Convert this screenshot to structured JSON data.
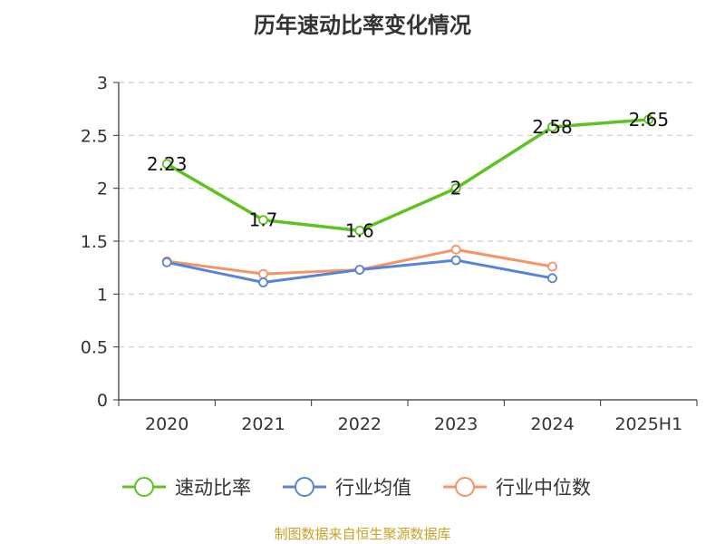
{
  "title": "历年速动比率变化情况",
  "source_note": "制图数据来自恒生聚源数据库",
  "chart_data": {
    "type": "line",
    "categories": [
      "2020",
      "2021",
      "2022",
      "2023",
      "2024",
      "2025H1"
    ],
    "ylim": [
      0,
      3
    ],
    "yticks": [
      0,
      0.5,
      1,
      1.5,
      2,
      2.5,
      3
    ],
    "ytick_labels": [
      "0",
      "0.5",
      "1",
      "1.5",
      "2",
      "2.5",
      "3"
    ],
    "grid": true,
    "legend_position": "bottom",
    "series": [
      {
        "name": "速动比率",
        "color": "#5dc41f",
        "values": [
          2.23,
          1.7,
          1.6,
          2,
          2.58,
          2.65
        ],
        "labels": [
          "2.23",
          "1.7",
          "1.6",
          "2",
          "2.58",
          "2.65"
        ],
        "show_labels": true
      },
      {
        "name": "行业均值",
        "color": "#5584d8",
        "values": [
          1.3,
          1.11,
          1.23,
          1.32,
          1.15,
          null
        ],
        "show_labels": false
      },
      {
        "name": "行业中位数",
        "color": "#f59466",
        "values": [
          1.31,
          1.19,
          1.23,
          1.42,
          1.26,
          null
        ],
        "show_labels": false
      }
    ]
  }
}
